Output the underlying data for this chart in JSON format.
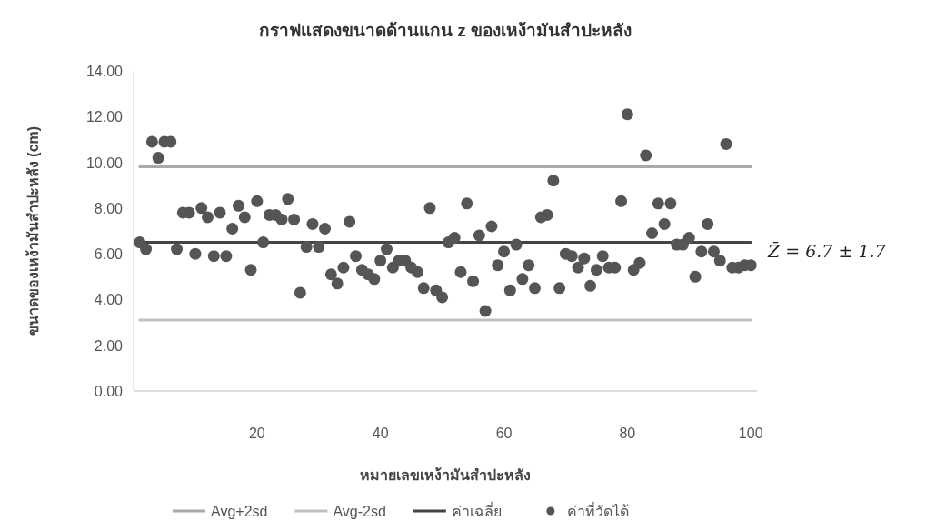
{
  "chart_data": {
    "type": "scatter",
    "title": "กราฟแสดงขนาดด้านแกน z ของเหง้ามันสำปะหลัง",
    "xlabel": "หมายเลขเหง้ามันสำปะหลัง",
    "ylabel": "ขนาดของเหง้ามันสำปะหลัง (cm)",
    "annotations": [
      "Z̄ = 6.7 ± 1.7"
    ],
    "xlim": [
      0,
      101
    ],
    "ylim": [
      0,
      14
    ],
    "xticks": [
      20,
      40,
      60,
      80,
      100
    ],
    "yticks": [
      {
        "value": 0,
        "label": "0.00"
      },
      {
        "value": 2,
        "label": "2.00"
      },
      {
        "value": 4,
        "label": "4.00"
      },
      {
        "value": 6,
        "label": "6.00"
      },
      {
        "value": 8,
        "label": "8.00"
      },
      {
        "value": 10,
        "label": "10.00"
      },
      {
        "value": 12,
        "label": "12.00"
      },
      {
        "value": 14,
        "label": "14.00"
      }
    ],
    "grid": false,
    "legend": "bottom",
    "series": [
      {
        "name": "Avg+2sd",
        "type": "line",
        "color": "#aaaaaa",
        "x": [
          1,
          100
        ],
        "values": [
          9.8,
          9.8
        ],
        "marker": "none",
        "line_style": "solid"
      },
      {
        "name": "Avg-2sd",
        "type": "line",
        "color": "#c0c0c0",
        "x": [
          1,
          100
        ],
        "values": [
          3.1,
          3.1
        ],
        "marker": "none",
        "line_style": "solid"
      },
      {
        "name": "ค่าเฉลี่ย",
        "type": "line",
        "color": "#444444",
        "x": [
          1,
          100
        ],
        "values": [
          6.5,
          6.5
        ],
        "marker": "none",
        "line_style": "solid"
      },
      {
        "name": "ค่าที่วัดได้",
        "color": "#555555",
        "marker": "circle",
        "x": [
          1,
          2,
          3,
          4,
          5,
          6,
          7,
          8,
          9,
          10,
          11,
          12,
          13,
          14,
          15,
          16,
          17,
          18,
          19,
          20,
          21,
          22,
          23,
          24,
          25,
          26,
          27,
          28,
          29,
          30,
          31,
          32,
          33,
          34,
          35,
          36,
          37,
          38,
          39,
          40,
          41,
          42,
          43,
          44,
          45,
          46,
          47,
          48,
          49,
          50,
          51,
          52,
          53,
          54,
          55,
          56,
          57,
          58,
          59,
          60,
          61,
          62,
          63,
          64,
          65,
          66,
          67,
          68,
          69,
          70,
          71,
          72,
          73,
          74,
          75,
          76,
          77,
          78,
          79,
          80,
          81,
          82,
          83,
          84,
          85,
          86,
          87,
          88,
          89,
          90,
          91,
          92,
          93,
          94,
          95,
          96,
          97,
          98,
          99,
          100
        ],
        "values": [
          6.5,
          6.2,
          10.9,
          10.2,
          10.9,
          10.9,
          6.2,
          7.8,
          7.8,
          6.0,
          8.0,
          7.6,
          5.9,
          7.8,
          5.9,
          7.1,
          8.1,
          7.6,
          5.3,
          8.3,
          6.5,
          7.7,
          7.7,
          7.5,
          8.4,
          7.5,
          4.3,
          6.3,
          7.3,
          6.3,
          7.1,
          5.1,
          4.7,
          5.4,
          7.4,
          5.9,
          5.3,
          5.1,
          4.9,
          5.7,
          6.2,
          5.4,
          5.7,
          5.7,
          5.4,
          5.2,
          4.5,
          8.0,
          4.4,
          4.1,
          6.5,
          6.7,
          5.2,
          8.2,
          4.8,
          6.8,
          3.5,
          7.2,
          5.5,
          6.1,
          4.4,
          6.4,
          4.9,
          5.5,
          4.5,
          7.6,
          7.7,
          9.2,
          4.5,
          6.0,
          5.9,
          5.4,
          5.8,
          4.6,
          5.3,
          5.9,
          5.4,
          5.4,
          8.3,
          12.1,
          5.3,
          5.6,
          10.3,
          6.9,
          8.2,
          7.3,
          8.2,
          6.4,
          6.4,
          6.7,
          5.0,
          6.1,
          7.3,
          6.1,
          5.7,
          10.8,
          5.4,
          5.4,
          5.5,
          5.5
        ]
      }
    ]
  }
}
